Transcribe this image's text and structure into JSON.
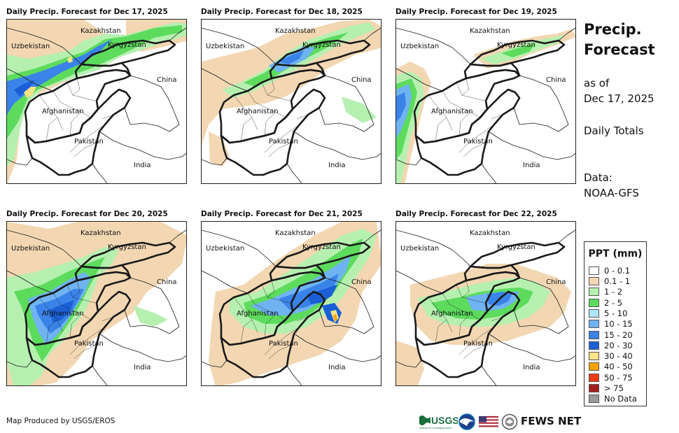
{
  "panels": [
    {
      "title": "Daily Precip. Forecast for Dec 17, 2025"
    },
    {
      "title": "Daily Precip. Forecast for Dec 18, 2025"
    },
    {
      "title": "Daily Precip. Forecast for Dec 19, 2025"
    },
    {
      "title": "Daily Precip. Forecast for Dec 20, 2025"
    },
    {
      "title": "Daily Precip. Forecast for Dec 21, 2025"
    },
    {
      "title": "Daily Precip. Forecast for Dec 22, 2025"
    }
  ],
  "countries": {
    "kazakhstan": "Kazakhstan",
    "uzbekistan": "Uzbekistan",
    "kyrgyzstan": "Kyrgyzstan",
    "china": "China",
    "afghanistan": "Afghanistan",
    "pakistan": "Pakistan",
    "india": "India"
  },
  "side": {
    "title_line1": "Precip.",
    "title_line2": "Forecast",
    "asof_line1": "as of",
    "asof_line2": "Dec 17, 2025",
    "totals": "Daily Totals",
    "data_line1": "Data:",
    "data_line2": "NOAA-GFS"
  },
  "legend": {
    "title": "PPT (mm)",
    "items": [
      {
        "label": "0 - 0.1",
        "color": "#ffffff"
      },
      {
        "label": "0.1 - 1",
        "color": "#f2d7b2"
      },
      {
        "label": "1 - 2",
        "color": "#b6f0b0"
      },
      {
        "label": "2 - 5",
        "color": "#5ddb5d"
      },
      {
        "label": "5 - 10",
        "color": "#aee6fb"
      },
      {
        "label": "10 - 15",
        "color": "#6fb3f2"
      },
      {
        "label": "15 - 20",
        "color": "#3a83e8"
      },
      {
        "label": "20 - 30",
        "color": "#1a5fd6"
      },
      {
        "label": "30 - 40",
        "color": "#fae287"
      },
      {
        "label": "40 - 50",
        "color": "#f5a300"
      },
      {
        "label": "50 - 75",
        "color": "#ee3b15"
      },
      {
        "label": "> 75",
        "color": "#a31d1d"
      },
      {
        "label": "No Data",
        "color": "#9a9a9a"
      }
    ]
  },
  "footer": {
    "credit": "Map Produced by USGS/EROS",
    "usgs": "USGS",
    "usgs_tagline": "science for a changing world",
    "fews": "FEWS NET"
  }
}
